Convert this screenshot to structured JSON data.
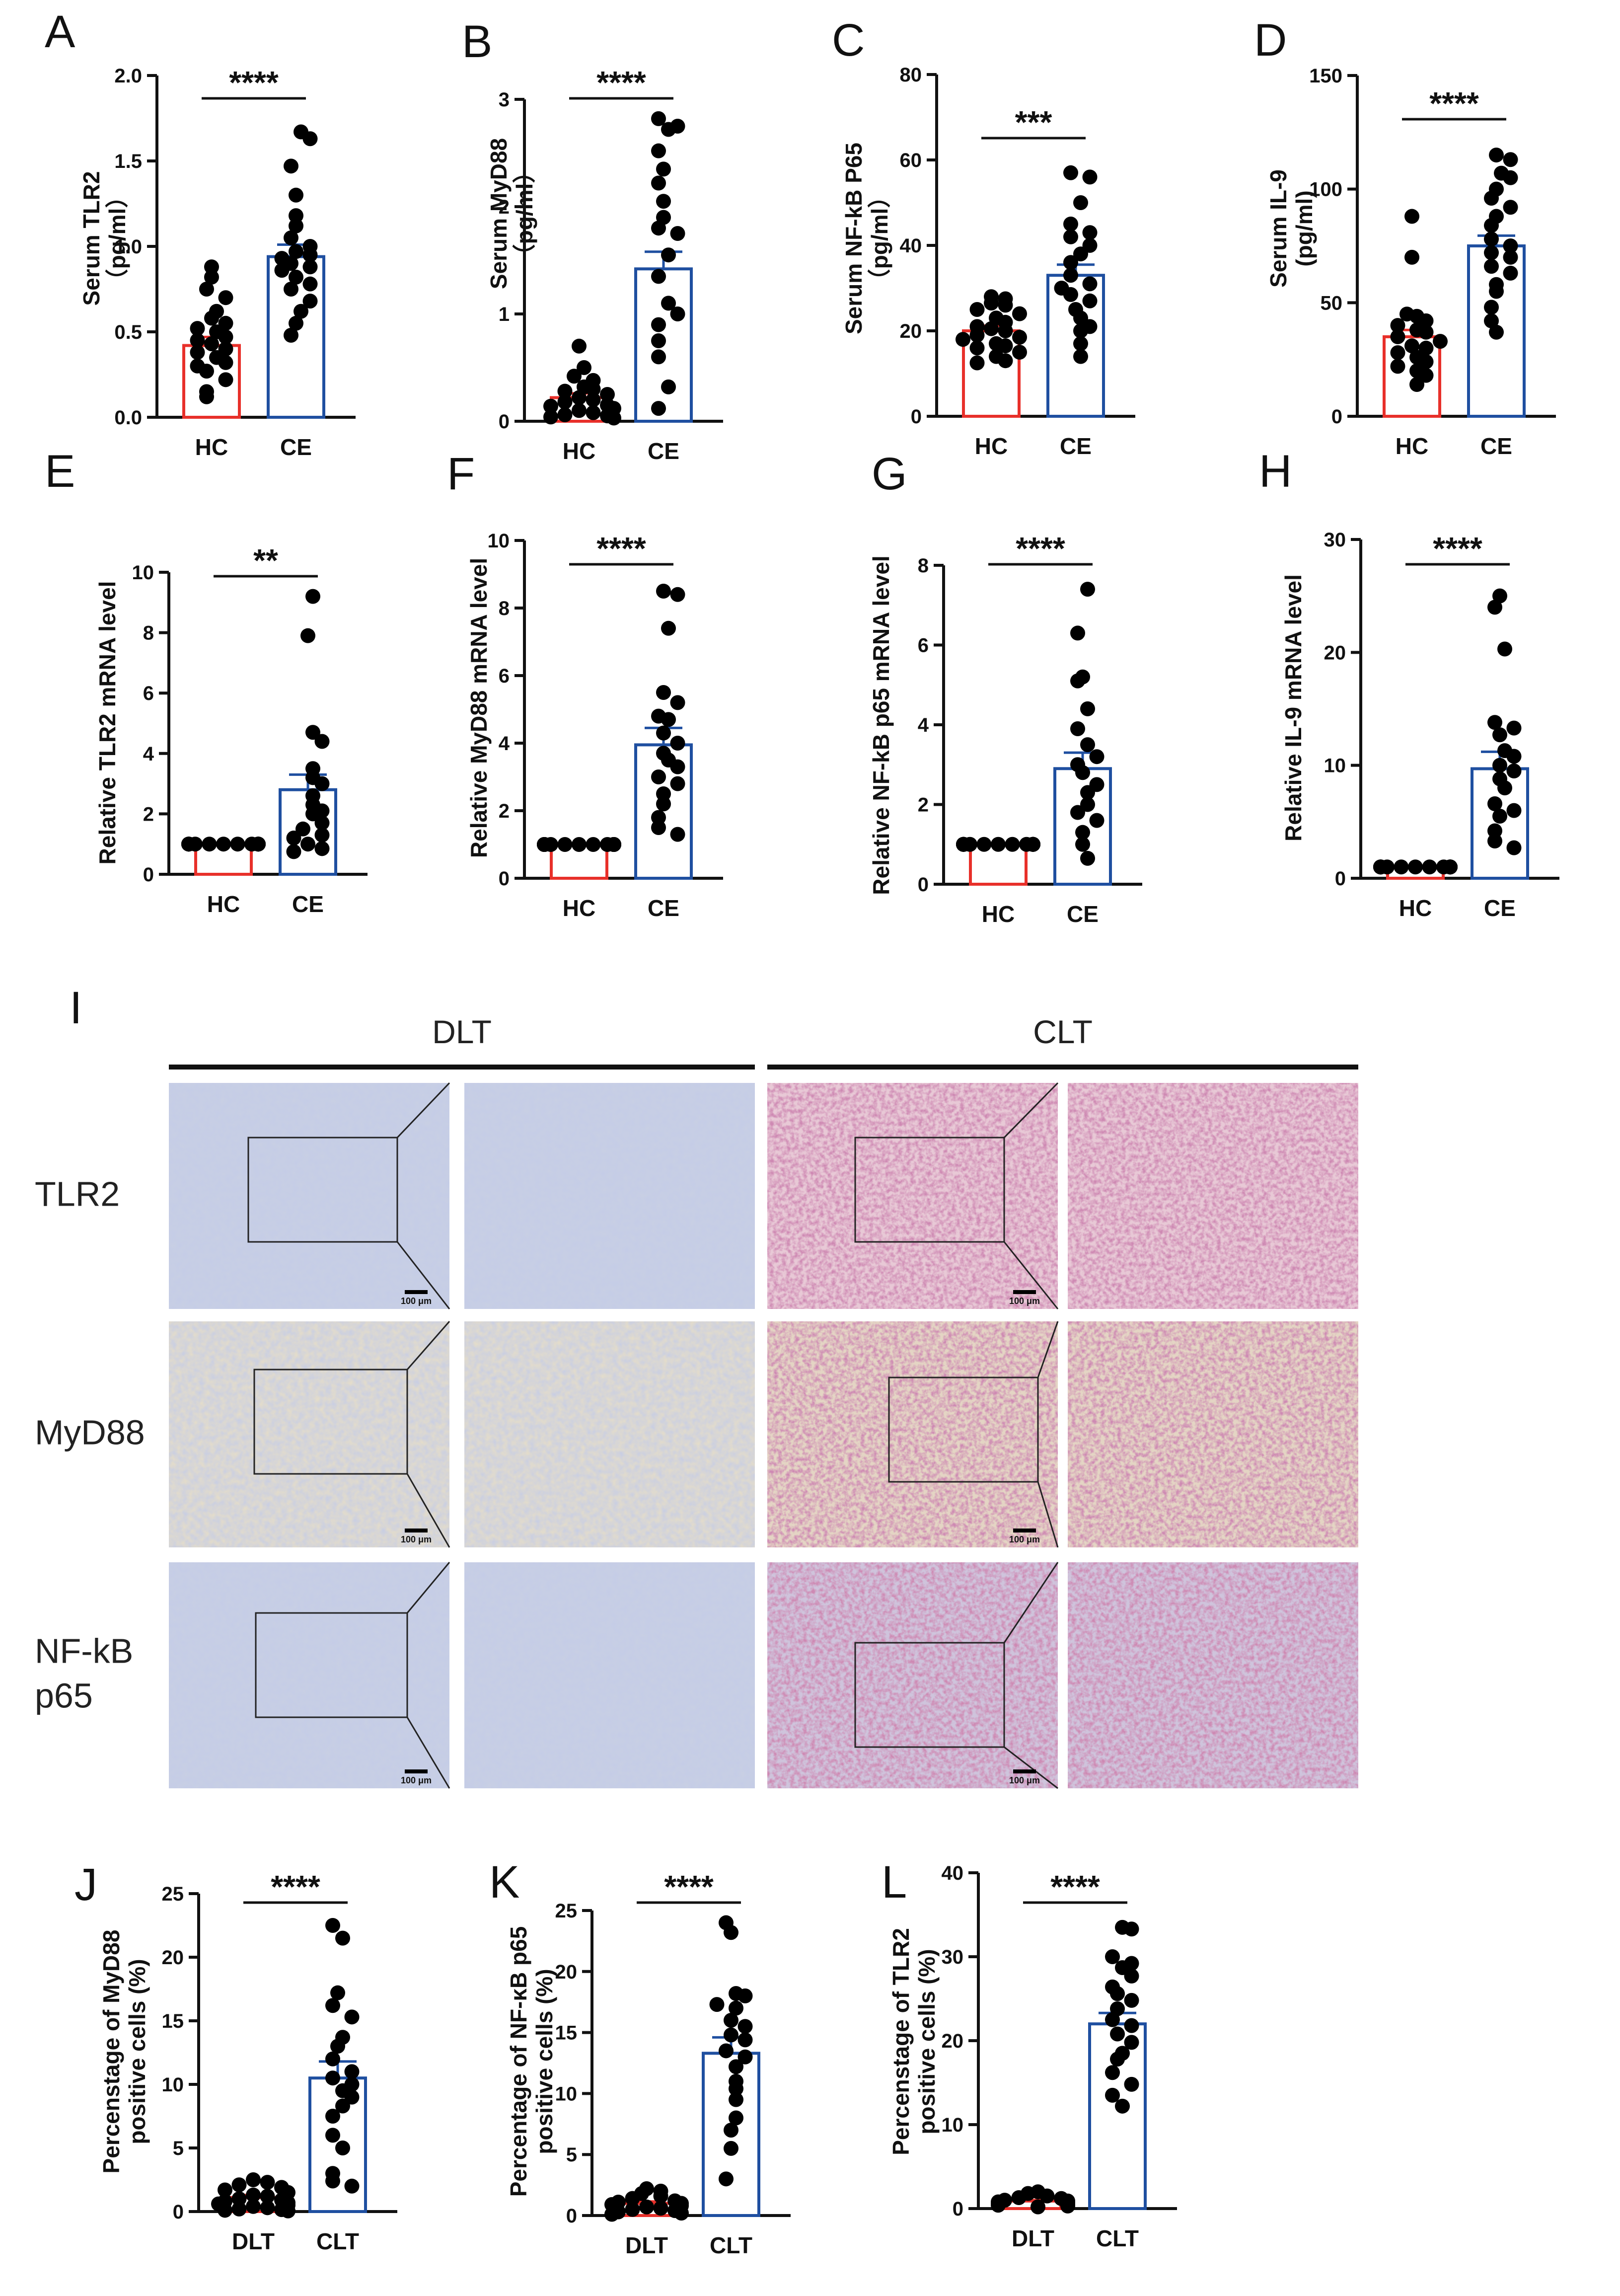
{
  "chart_data": [
    {
      "panel": "A",
      "type": "bar",
      "categories": [
        "HC",
        "CE"
      ],
      "ylabel": [
        "Serum TLR2",
        "（pg/ml）"
      ],
      "ylim": [
        0,
        2.0
      ],
      "yticks": [
        "0.0",
        "0.5",
        "1.0",
        "1.5",
        "2.0"
      ],
      "significance": "****",
      "colors": [
        "#e8302a",
        "#1f4fa0"
      ],
      "series": [
        {
          "mean": 0.42,
          "sem": 0.05,
          "points": [
            0.88,
            0.82,
            0.75,
            0.7,
            0.62,
            0.58,
            0.55,
            0.52,
            0.5,
            0.47,
            0.45,
            0.43,
            0.4,
            0.38,
            0.35,
            0.32,
            0.3,
            0.27,
            0.22,
            0.15,
            0.12
          ]
        },
        {
          "mean": 0.94,
          "sem": 0.07,
          "points": [
            1.67,
            1.63,
            1.47,
            1.3,
            1.18,
            1.12,
            1.05,
            1.0,
            0.97,
            0.95,
            0.93,
            0.9,
            0.88,
            0.86,
            0.82,
            0.78,
            0.75,
            0.68,
            0.62,
            0.55,
            0.48
          ]
        }
      ]
    },
    {
      "panel": "B",
      "type": "bar",
      "categories": [
        "HC",
        "CE"
      ],
      "ylabel": [
        "Serum MyD88",
        "（pg/ml）"
      ],
      "ylim": [
        0,
        3
      ],
      "yticks": [
        "0",
        "1",
        "2",
        "3"
      ],
      "significance": "****",
      "colors": [
        "#e8302a",
        "#1f4fa0"
      ],
      "series": [
        {
          "mean": 0.22,
          "sem": 0.04,
          "points": [
            0.7,
            0.5,
            0.42,
            0.38,
            0.32,
            0.3,
            0.28,
            0.25,
            0.22,
            0.2,
            0.18,
            0.15,
            0.14,
            0.12,
            0.1,
            0.08,
            0.06,
            0.05,
            0.04,
            0.03
          ]
        },
        {
          "mean": 1.42,
          "sem": 0.16,
          "points": [
            2.82,
            2.75,
            2.72,
            2.52,
            2.35,
            2.22,
            2.05,
            1.9,
            1.8,
            1.75,
            1.55,
            1.35,
            1.1,
            1.0,
            0.9,
            0.75,
            0.6,
            0.32,
            0.12
          ]
        }
      ]
    },
    {
      "panel": "C",
      "type": "bar",
      "categories": [
        "HC",
        "CE"
      ],
      "ylabel": [
        "Serum NF-kB P65",
        "（pg/ml）"
      ],
      "ylim": [
        0,
        80
      ],
      "yticks": [
        "0",
        "20",
        "40",
        "60",
        "80"
      ],
      "significance": "***",
      "colors": [
        "#e8302a",
        "#1f4fa0"
      ],
      "series": [
        {
          "mean": 20,
          "sem": 1.2,
          "points": [
            28,
            27.5,
            26.5,
            26,
            25,
            24,
            23,
            22,
            21,
            20.5,
            20,
            19,
            18.5,
            18,
            17,
            16.5,
            16,
            15,
            14,
            13,
            12.5
          ]
        },
        {
          "mean": 33,
          "sem": 2.5,
          "points": [
            57,
            56,
            50,
            45,
            43,
            42,
            40,
            38,
            36,
            33,
            31,
            30,
            28.5,
            27,
            25,
            23,
            21,
            20,
            17,
            14
          ]
        }
      ]
    },
    {
      "panel": "D",
      "type": "bar",
      "categories": [
        "HC",
        "CE"
      ],
      "ylabel": [
        "Serum IL-9",
        "(pg/ml)"
      ],
      "ylim": [
        0,
        150
      ],
      "yticks": [
        "0",
        "50",
        "100",
        "150"
      ],
      "significance": "****",
      "colors": [
        "#e8302a",
        "#1f4fa0"
      ],
      "series": [
        {
          "mean": 35,
          "sem": 3,
          "points": [
            88,
            70,
            45,
            44,
            42,
            40,
            38,
            37,
            35,
            33,
            31,
            30,
            28,
            26,
            24,
            22,
            20,
            18,
            14
          ]
        },
        {
          "mean": 75,
          "sem": 4.5,
          "points": [
            115,
            113,
            107,
            105,
            100,
            96,
            92,
            88,
            84,
            78,
            75,
            72,
            70,
            66,
            63,
            58,
            55,
            48,
            42,
            37
          ]
        }
      ]
    },
    {
      "panel": "E",
      "type": "bar",
      "categories": [
        "HC",
        "CE"
      ],
      "ylabel": [
        "Relative TLR2 mRNA level"
      ],
      "ylim": [
        0,
        10
      ],
      "yticks": [
        "0",
        "2",
        "4",
        "6",
        "8",
        "10"
      ],
      "significance": "**",
      "colors": [
        "#e8302a",
        "#1f4fa0"
      ],
      "series": [
        {
          "mean": 1.0,
          "sem": 0.02,
          "points": [
            1,
            1,
            1,
            1,
            1,
            1,
            1,
            1,
            1,
            1,
            1,
            1,
            1,
            1,
            1,
            1,
            1,
            1,
            1,
            1
          ]
        },
        {
          "mean": 2.8,
          "sem": 0.5,
          "points": [
            9.2,
            7.9,
            4.7,
            4.4,
            3.5,
            3.2,
            3.0,
            2.6,
            2.3,
            2.1,
            2.0,
            1.7,
            1.5,
            1.3,
            1.2,
            1.0,
            0.85,
            0.75
          ]
        }
      ]
    },
    {
      "panel": "F",
      "type": "bar",
      "categories": [
        "HC",
        "CE"
      ],
      "ylabel": [
        "Relative MyD88 mRNA level"
      ],
      "ylim": [
        0,
        10
      ],
      "yticks": [
        "0",
        "2",
        "4",
        "6",
        "8",
        "10"
      ],
      "significance": "****",
      "colors": [
        "#e8302a",
        "#1f4fa0"
      ],
      "series": [
        {
          "mean": 1.0,
          "sem": 0.02,
          "points": [
            1,
            1,
            1,
            1,
            1,
            1,
            1,
            1,
            1,
            1,
            1,
            1,
            1,
            1,
            1,
            1,
            1,
            1,
            1,
            1
          ]
        },
        {
          "mean": 3.95,
          "sem": 0.5,
          "points": [
            8.5,
            8.4,
            7.4,
            5.5,
            5.2,
            4.8,
            4.7,
            4.3,
            4.0,
            3.7,
            3.5,
            3.3,
            3.0,
            2.8,
            2.5,
            2.2,
            1.8,
            1.5,
            1.3
          ]
        }
      ]
    },
    {
      "panel": "G",
      "type": "bar",
      "categories": [
        "HC",
        "CE"
      ],
      "ylabel": [
        "Relative NF-kB p65 mRNA level"
      ],
      "ylim": [
        0,
        8
      ],
      "yticks": [
        "0",
        "2",
        "4",
        "6",
        "8"
      ],
      "significance": "****",
      "colors": [
        "#e8302a",
        "#1f4fa0"
      ],
      "series": [
        {
          "mean": 1.0,
          "sem": 0.02,
          "points": [
            1,
            1,
            1,
            1,
            1,
            1,
            1,
            1,
            1,
            1,
            1,
            1,
            1,
            1,
            1,
            1,
            1,
            1,
            1,
            1
          ]
        },
        {
          "mean": 2.9,
          "sem": 0.4,
          "points": [
            7.4,
            6.3,
            5.2,
            5.1,
            4.4,
            3.9,
            3.5,
            3.2,
            3.0,
            2.8,
            2.5,
            2.3,
            2.0,
            1.8,
            1.6,
            1.3,
            1.0,
            0.65
          ]
        }
      ]
    },
    {
      "panel": "H",
      "type": "bar",
      "categories": [
        "HC",
        "CE"
      ],
      "ylabel": [
        "Relative IL-9 mRNA level"
      ],
      "ylim": [
        0,
        30
      ],
      "yticks": [
        "0",
        "10",
        "20",
        "30"
      ],
      "significance": "****",
      "colors": [
        "#e8302a",
        "#1f4fa0"
      ],
      "series": [
        {
          "mean": 1.0,
          "sem": 0.05,
          "points": [
            1,
            1,
            1,
            1,
            1,
            1,
            1,
            1,
            1,
            1,
            1,
            1,
            1,
            1,
            1,
            1,
            1,
            1,
            1,
            1
          ]
        },
        {
          "mean": 9.7,
          "sem": 1.5,
          "points": [
            25,
            24,
            20.3,
            13.8,
            13.3,
            12.7,
            11.3,
            10.8,
            10,
            9.5,
            8.8,
            8.0,
            6.6,
            6.0,
            5.5,
            4.2,
            3.3,
            2.7
          ]
        }
      ]
    },
    {
      "panel": "J",
      "type": "bar",
      "categories": [
        "DLT",
        "CLT"
      ],
      "ylabel": [
        "Percenstage of MyD88",
        "positive cells (%)"
      ],
      "ylim": [
        0,
        25
      ],
      "yticks": [
        "0",
        "5",
        "10",
        "15",
        "20",
        "25"
      ],
      "significance": "****",
      "colors": [
        "#e8302a",
        "#1f4fa0"
      ],
      "series": [
        {
          "mean": 1.1,
          "sem": 0.2,
          "points": [
            2.5,
            2.3,
            2.1,
            1.9,
            1.7,
            1.5,
            1.3,
            1.2,
            1.0,
            0.9,
            0.8,
            0.7,
            0.6,
            0.5,
            0.4,
            0.3,
            0.2,
            0.15,
            0.1,
            0.05
          ]
        },
        {
          "mean": 10.5,
          "sem": 1.3,
          "points": [
            22.5,
            21.5,
            17.2,
            16.2,
            15.3,
            13.7,
            13.0,
            12.0,
            11.0,
            10.5,
            10.0,
            9.5,
            9.0,
            8.3,
            7.5,
            6.0,
            5.0,
            3.0,
            2.4,
            2.0
          ]
        }
      ]
    },
    {
      "panel": "K",
      "type": "bar",
      "categories": [
        "DLT",
        "CLT"
      ],
      "ylabel": [
        "Percentage of NF-κB p65",
        "positive cells (%)"
      ],
      "ylim": [
        0,
        25
      ],
      "yticks": [
        "0",
        "5",
        "10",
        "15",
        "20",
        "25"
      ],
      "significance": "****",
      "colors": [
        "#e8302a",
        "#1f4fa0"
      ],
      "series": [
        {
          "mean": 1.0,
          "sem": 0.15,
          "points": [
            2.2,
            2.0,
            1.8,
            1.6,
            1.4,
            1.2,
            1.1,
            1.0,
            0.9,
            0.8,
            0.7,
            0.6,
            0.5,
            0.4,
            0.3,
            0.2,
            0.1
          ]
        },
        {
          "mean": 13.3,
          "sem": 1.3,
          "points": [
            24,
            23.2,
            18.2,
            18.0,
            17.3,
            17.0,
            16.0,
            15.5,
            14.8,
            14.4,
            13.5,
            13.0,
            12.2,
            11.0,
            10.4,
            9.5,
            8.0,
            7.0,
            5.5,
            3.0
          ]
        }
      ]
    },
    {
      "panel": "L",
      "type": "bar",
      "categories": [
        "DLT",
        "CLT"
      ],
      "ylabel": [
        "Percenstage of TLR2",
        "positive cells (%)"
      ],
      "ylim": [
        0,
        40
      ],
      "yticks": [
        "0",
        "10",
        "20",
        "30",
        "40"
      ],
      "significance": "****",
      "colors": [
        "#e8302a",
        "#1f4fa0"
      ],
      "series": [
        {
          "mean": 0.9,
          "sem": 0.1,
          "points": [
            2.0,
            1.8,
            1.5,
            1.3,
            1.2,
            1.0,
            0.9,
            0.8,
            0.7,
            0.6,
            0.5,
            0.4,
            0.3,
            0.2
          ]
        },
        {
          "mean": 22,
          "sem": 1.3,
          "points": [
            33.5,
            33.3,
            30,
            29.2,
            28.7,
            27.7,
            26.4,
            25.6,
            24.8,
            23.8,
            22.5,
            21.8,
            20.8,
            19.8,
            18.5,
            17.8,
            16.2,
            14.8,
            13.5,
            12.2
          ]
        }
      ]
    }
  ],
  "ihc": {
    "panel": "I",
    "groups": [
      "DLT",
      "CLT"
    ],
    "rows": [
      {
        "label": [
          "TLR2"
        ]
      },
      {
        "label": [
          "MyD88"
        ]
      },
      {
        "label": [
          "NF-kB",
          "p65"
        ]
      }
    ],
    "scale_bar": "100 μm",
    "colors": {
      "dlt_blue": "#c8cfe4",
      "dlt_beige": "#e3dccb",
      "clt_pink": "#e8c9d6",
      "clt_brown": "#e4d5c4",
      "clt_purple": "#cfc4dc"
    }
  }
}
